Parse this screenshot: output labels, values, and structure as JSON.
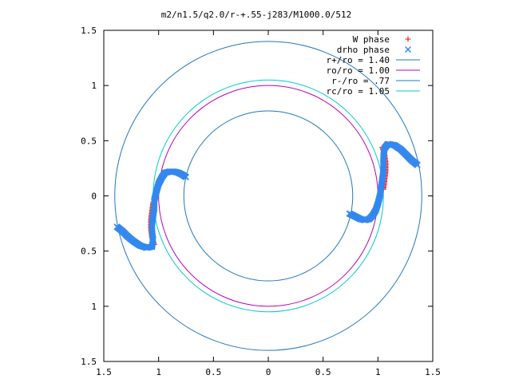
{
  "chart_data": {
    "type": "scatter",
    "title": "m2/n1.5/q2.0/r-+.55-j283/M1000.0/512",
    "xlim": [
      -1.5,
      1.5
    ],
    "ylim": [
      -1.5,
      1.5
    ],
    "xticks": [
      -1.5,
      -1,
      -0.5,
      0,
      0.5,
      1,
      1.5
    ],
    "yticks": [
      1.5,
      1,
      0.5,
      0,
      -0.5,
      -1,
      -1.5
    ],
    "xtick_labels": [
      "1.5",
      "1",
      "0.5",
      "0",
      "0.5",
      "1",
      "1.5"
    ],
    "ytick_labels": [
      "1.5",
      "1",
      "0.5",
      "0",
      "0.5",
      "1",
      "1.5"
    ],
    "grid": false,
    "legend_position": "top-right",
    "colors": {
      "w_phase": "#ff0000",
      "drho_phase": "#3388ee",
      "r_plus": "#2277bb",
      "ro": "#bb00bb",
      "r_minus": "#2277bb",
      "rc": "#00cccc"
    },
    "circles": [
      {
        "name": "r+/ro = 1.40",
        "radius": 1.4,
        "color_key": "r_plus"
      },
      {
        "name": "ro/ro = 1.00",
        "radius": 1.0,
        "color_key": "ro"
      },
      {
        "name": "r-/ro = .77",
        "radius": 0.77,
        "color_key": "r_minus"
      },
      {
        "name": "rc/ro = 1.05",
        "radius": 1.05,
        "color_key": "rc"
      }
    ],
    "series": [
      {
        "name": "W phase",
        "marker": "plus",
        "color_key": "w_phase",
        "points": [
          [
            -1.04,
            -0.44
          ],
          [
            -1.06,
            -0.38
          ],
          [
            -1.07,
            -0.3
          ],
          [
            -1.07,
            -0.22
          ],
          [
            -1.06,
            -0.14
          ],
          [
            -1.05,
            -0.06
          ],
          [
            1.04,
            0.44
          ],
          [
            1.06,
            0.38
          ],
          [
            1.07,
            0.3
          ],
          [
            1.07,
            0.22
          ],
          [
            1.06,
            0.14
          ],
          [
            1.05,
            0.06
          ]
        ]
      },
      {
        "name": "drho phase",
        "marker": "cross",
        "color_key": "drho_phase",
        "points": [
          [
            -1.38,
            -0.28
          ],
          [
            -1.33,
            -0.32
          ],
          [
            -1.28,
            -0.37
          ],
          [
            -1.23,
            -0.41
          ],
          [
            -1.17,
            -0.45
          ],
          [
            -1.11,
            -0.47
          ],
          [
            -1.06,
            -0.46
          ],
          [
            -1.05,
            -0.4
          ],
          [
            -1.06,
            -0.33
          ],
          [
            -1.06,
            -0.25
          ],
          [
            -1.05,
            -0.18
          ],
          [
            -1.04,
            -0.11
          ],
          [
            -1.04,
            -0.04
          ],
          [
            -1.02,
            0.04
          ],
          [
            -1.0,
            0.11
          ],
          [
            -0.97,
            0.17
          ],
          [
            -0.94,
            0.21
          ],
          [
            -0.9,
            0.22
          ],
          [
            -0.86,
            0.22
          ],
          [
            -0.82,
            0.21
          ],
          [
            -0.78,
            0.19
          ],
          [
            -0.75,
            0.17
          ],
          [
            1.36,
            0.28
          ],
          [
            1.31,
            0.32
          ],
          [
            1.26,
            0.37
          ],
          [
            1.21,
            0.42
          ],
          [
            1.15,
            0.46
          ],
          [
            1.09,
            0.47
          ],
          [
            1.06,
            0.43
          ],
          [
            1.05,
            0.36
          ],
          [
            1.05,
            0.29
          ],
          [
            1.05,
            0.22
          ],
          [
            1.04,
            0.15
          ],
          [
            1.03,
            0.08
          ],
          [
            1.02,
            0.01
          ],
          [
            1.0,
            -0.07
          ],
          [
            0.98,
            -0.13
          ],
          [
            0.95,
            -0.18
          ],
          [
            0.92,
            -0.21
          ],
          [
            0.88,
            -0.22
          ],
          [
            0.84,
            -0.21
          ],
          [
            0.8,
            -0.19
          ],
          [
            0.76,
            -0.17
          ],
          [
            0.74,
            -0.16
          ]
        ]
      }
    ]
  }
}
